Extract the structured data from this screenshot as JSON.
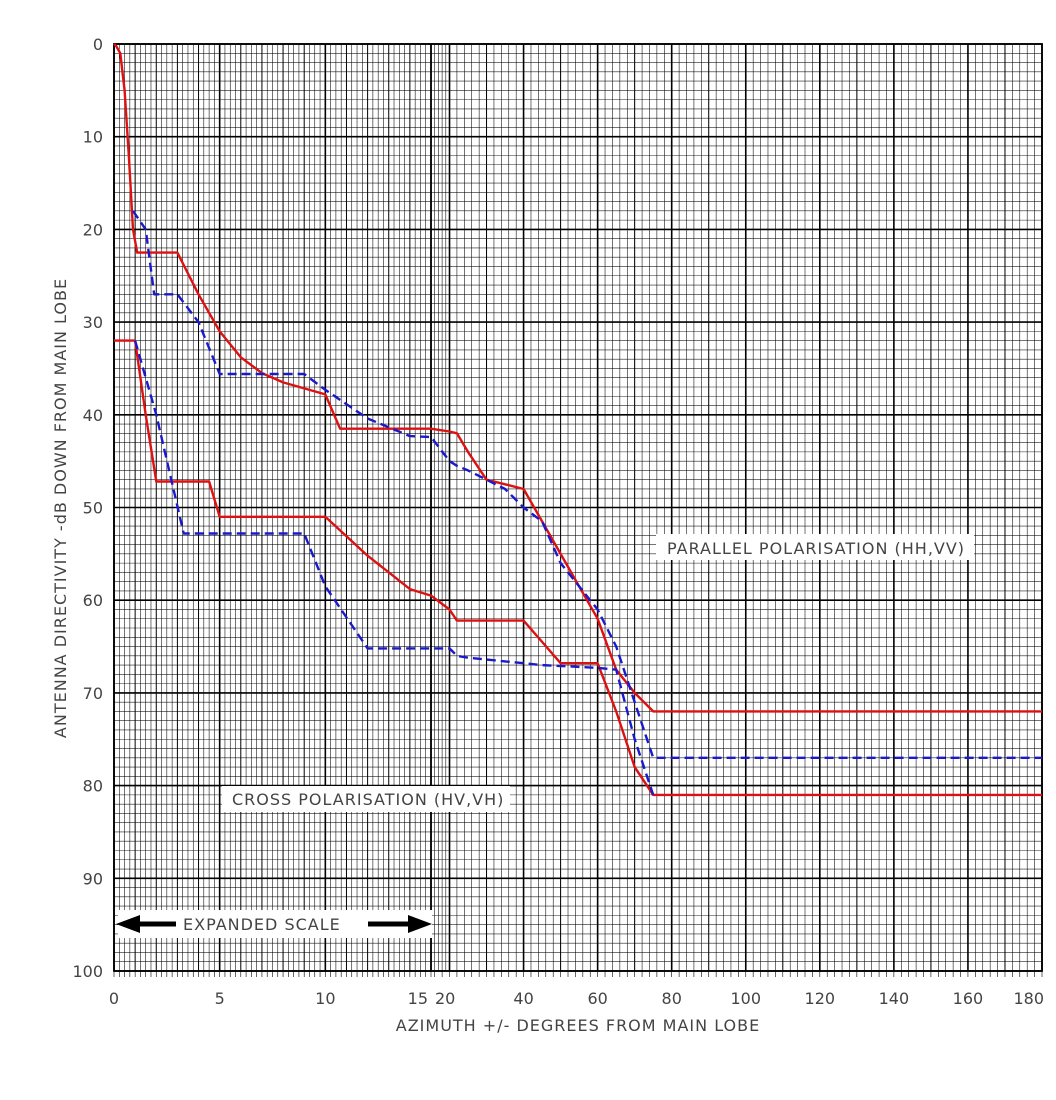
{
  "chart_data": {
    "type": "line",
    "title": "",
    "xlabel": "AZIMUTH +/- DEGREES FROM MAIN LOBE",
    "ylabel": "ANTENNA DIRECTIVITY -dB DOWN FROM MAIN LOBE",
    "xlim": [
      0,
      180
    ],
    "ylim": [
      0,
      100
    ],
    "y_inverted": true,
    "x_scale": "piecewise: 0-15 expanded scale, 15-180 compressed scale",
    "x_ticks": [
      "0",
      "5",
      "10",
      "15",
      "20",
      "40",
      "60",
      "80",
      "100",
      "120",
      "140",
      "160",
      "180"
    ],
    "y_ticks": [
      "0",
      "10",
      "20",
      "30",
      "40",
      "50",
      "60",
      "70",
      "80",
      "90",
      "100"
    ],
    "grid": true,
    "annotations": {
      "parallel": "PARALLEL POLARISATION (HH,VV)",
      "cross": "CROSS POLARISATION (HV,VH)",
      "expanded": "EXPANDED SCALE"
    },
    "series": [
      {
        "group": "parallel",
        "style": "solid",
        "color": "#dd1111",
        "x": [
          0,
          0.1,
          0.3,
          0.5,
          0.7,
          0.9,
          1.1,
          1.5,
          3,
          4,
          5,
          6,
          7,
          8,
          10,
          10.7,
          15,
          20,
          22,
          25,
          30,
          35,
          40,
          45,
          50,
          55,
          60,
          65,
          70,
          75,
          80,
          85,
          90,
          180
        ],
        "y": [
          0,
          0.2,
          1,
          5,
          12,
          20,
          22.5,
          22.5,
          22.5,
          27,
          31,
          33.8,
          35.5,
          36.5,
          37.8,
          41.5,
          41.5,
          41.8,
          42,
          44,
          47,
          47.5,
          48,
          51.5,
          55,
          58.5,
          62,
          67.5,
          70,
          72,
          72,
          72,
          72,
          72
        ]
      },
      {
        "group": "parallel",
        "style": "dashed",
        "color": "#1a1acc",
        "x": [
          0.9,
          1.5,
          1.9,
          3,
          4,
          5,
          6,
          7,
          8,
          9,
          10,
          12,
          14,
          15,
          20,
          22,
          25,
          30,
          35,
          40,
          45,
          50,
          55,
          60,
          65,
          70,
          75,
          80,
          90,
          180
        ],
        "y": [
          18,
          20,
          27,
          27,
          30,
          35.6,
          35.6,
          35.6,
          35.6,
          35.6,
          37.3,
          40.4,
          42.3,
          42.4,
          45,
          45.5,
          46,
          47,
          48,
          50,
          51.5,
          56,
          58.5,
          61,
          65,
          71,
          77,
          77,
          77,
          77
        ]
      },
      {
        "group": "cross",
        "style": "solid",
        "color": "#dd1111",
        "x": [
          0,
          1,
          1.5,
          2,
          4.5,
          5,
          6,
          7,
          8,
          9,
          10,
          12,
          14,
          15,
          20,
          22,
          25,
          30,
          35,
          40,
          45,
          50,
          55,
          60,
          65,
          70,
          75,
          80,
          180
        ],
        "y": [
          32,
          32,
          40,
          47.2,
          47.2,
          51,
          51,
          51,
          51,
          51,
          51,
          55.2,
          58.8,
          59.5,
          61,
          62.2,
          62.2,
          62.2,
          62.2,
          62.2,
          64.5,
          66.8,
          66.8,
          66.8,
          72,
          78,
          81,
          81,
          81
        ]
      },
      {
        "group": "cross",
        "style": "dashed",
        "color": "#1a1acc",
        "x": [
          1,
          2,
          3.3,
          5,
          6,
          7,
          8,
          9,
          10,
          12,
          14,
          15,
          20,
          22,
          25,
          30,
          35,
          40,
          45,
          50,
          55,
          60,
          65,
          70,
          75
        ],
        "y": [
          32,
          40,
          52.8,
          52.8,
          52.8,
          52.8,
          52.8,
          52.8,
          58.5,
          65.2,
          65.2,
          65.2,
          65.2,
          66,
          66.2,
          66.4,
          66.6,
          66.8,
          67,
          67.1,
          67.2,
          67.3,
          67.5,
          75,
          81
        ]
      }
    ]
  }
}
